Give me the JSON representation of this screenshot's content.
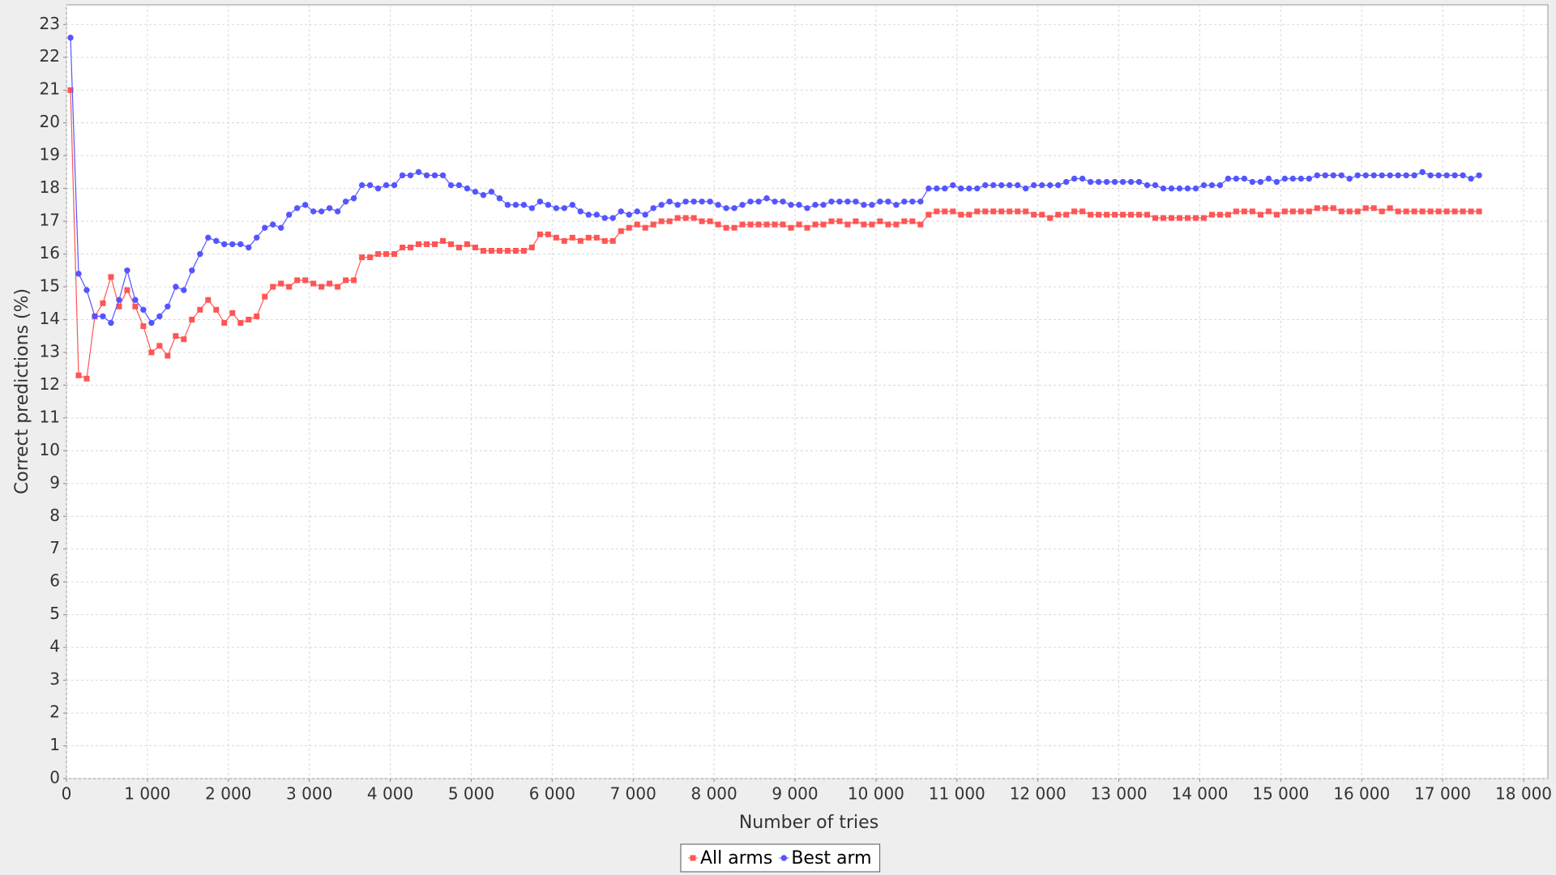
{
  "chart_data": {
    "type": "line",
    "xlabel": "Number of tries",
    "ylabel": "Correct predictions (%)",
    "xlim": [
      0,
      18300
    ],
    "ylim": [
      0,
      23.6
    ],
    "xticks": [
      0,
      {
        "value": 1000,
        "label": "1 000"
      },
      {
        "value": 2000,
        "label": "2 000"
      },
      {
        "value": 3000,
        "label": "3 000"
      },
      {
        "value": 4000,
        "label": "4 000"
      },
      {
        "value": 5000,
        "label": "5 000"
      },
      {
        "value": 6000,
        "label": "6 000"
      },
      {
        "value": 7000,
        "label": "7 000"
      },
      {
        "value": 8000,
        "label": "8 000"
      },
      {
        "value": 9000,
        "label": "9 000"
      },
      {
        "value": 10000,
        "label": "10 000"
      },
      {
        "value": 11000,
        "label": "11 000"
      },
      {
        "value": 12000,
        "label": "12 000"
      },
      {
        "value": 13000,
        "label": "13 000"
      },
      {
        "value": 14000,
        "label": "14 000"
      },
      {
        "value": 15000,
        "label": "15 000"
      },
      {
        "value": 16000,
        "label": "16 000"
      },
      {
        "value": 17000,
        "label": "17 000"
      },
      {
        "value": 18000,
        "label": "18 000"
      }
    ],
    "yticks": [
      0,
      1,
      2,
      3,
      4,
      5,
      6,
      7,
      8,
      9,
      10,
      11,
      12,
      13,
      14,
      15,
      16,
      17,
      18,
      19,
      20,
      21,
      22,
      23
    ],
    "grid": true,
    "x": [
      50,
      150,
      250,
      350,
      450,
      550,
      650,
      750,
      850,
      950,
      1050,
      1150,
      1250,
      1350,
      1450,
      1550,
      1650,
      1750,
      1850,
      1950,
      2050,
      2150,
      2250,
      2350,
      2450,
      2550,
      2650,
      2750,
      2850,
      2950,
      3050,
      3150,
      3250,
      3350,
      3450,
      3550,
      3650,
      3750,
      3850,
      3950,
      4050,
      4150,
      4250,
      4350,
      4450,
      4550,
      4650,
      4750,
      4850,
      4950,
      5050,
      5150,
      5250,
      5350,
      5450,
      5550,
      5650,
      5750,
      5850,
      5950,
      6050,
      6150,
      6250,
      6350,
      6450,
      6550,
      6650,
      6750,
      6850,
      6950,
      7050,
      7150,
      7250,
      7350,
      7450,
      7550,
      7650,
      7750,
      7850,
      7950,
      8050,
      8150,
      8250,
      8350,
      8450,
      8550,
      8650,
      8750,
      8850,
      8950,
      9050,
      9150,
      9250,
      9350,
      9450,
      9550,
      9650,
      9750,
      9850,
      9950,
      10050,
      10150,
      10250,
      10350,
      10450,
      10550,
      10650,
      10750,
      10850,
      10950,
      11050,
      11150,
      11250,
      11350,
      11450,
      11550,
      11650,
      11750,
      11850,
      11950,
      12050,
      12150,
      12250,
      12350,
      12450,
      12550,
      12650,
      12750,
      12850,
      12950,
      13050,
      13150,
      13250,
      13350,
      13450,
      13550,
      13650,
      13750,
      13850,
      13950,
      14050,
      14150,
      14250,
      14350,
      14450,
      14550,
      14650,
      14750,
      14850,
      14950,
      15050,
      15150,
      15250,
      15350,
      15450,
      15550,
      15650,
      15750,
      15850,
      15950,
      16050,
      16150,
      16250,
      16350,
      16450,
      16550,
      16650,
      16750,
      16850,
      16950,
      17050,
      17150,
      17250,
      17350,
      17450
    ],
    "series": [
      {
        "name": "All arms",
        "color": "#ff5555",
        "marker": "square",
        "values": [
          21.0,
          12.3,
          12.2,
          14.1,
          14.5,
          15.3,
          14.4,
          14.9,
          14.4,
          13.8,
          13.0,
          13.2,
          12.9,
          13.5,
          13.4,
          14.0,
          14.3,
          14.6,
          14.3,
          13.9,
          14.2,
          13.9,
          14.0,
          14.1,
          14.7,
          15.0,
          15.1,
          15.0,
          15.2,
          15.2,
          15.1,
          15.0,
          15.1,
          15.0,
          15.2,
          15.2,
          15.9,
          15.9,
          16.0,
          16.0,
          16.0,
          16.2,
          16.2,
          16.3,
          16.3,
          16.3,
          16.4,
          16.3,
          16.2,
          16.3,
          16.2,
          16.1,
          16.1,
          16.1,
          16.1,
          16.1,
          16.1,
          16.2,
          16.6,
          16.6,
          16.5,
          16.4,
          16.5,
          16.4,
          16.5,
          16.5,
          16.4,
          16.4,
          16.7,
          16.8,
          16.9,
          16.8,
          16.9,
          17.0,
          17.0,
          17.1,
          17.1,
          17.1,
          17.0,
          17.0,
          16.9,
          16.8,
          16.8,
          16.9,
          16.9,
          16.9,
          16.9,
          16.9,
          16.9,
          16.8,
          16.9,
          16.8,
          16.9,
          16.9,
          17.0,
          17.0,
          16.9,
          17.0,
          16.9,
          16.9,
          17.0,
          16.9,
          16.9,
          17.0,
          17.0,
          16.9,
          17.2,
          17.3,
          17.3,
          17.3,
          17.2,
          17.2,
          17.3,
          17.3,
          17.3,
          17.3,
          17.3,
          17.3,
          17.3,
          17.2,
          17.2,
          17.1,
          17.2,
          17.2,
          17.3,
          17.3,
          17.2,
          17.2,
          17.2,
          17.2,
          17.2,
          17.2,
          17.2,
          17.2,
          17.1,
          17.1,
          17.1,
          17.1,
          17.1,
          17.1,
          17.1,
          17.2,
          17.2,
          17.2,
          17.3,
          17.3,
          17.3,
          17.2,
          17.3,
          17.2,
          17.3,
          17.3,
          17.3,
          17.3,
          17.4,
          17.4,
          17.4,
          17.3,
          17.3,
          17.3,
          17.4,
          17.4,
          17.3,
          17.4,
          17.3,
          17.3,
          17.3,
          17.3,
          17.3,
          17.3,
          17.3,
          17.3,
          17.3,
          17.3,
          17.3
        ]
      },
      {
        "name": "Best arm",
        "color": "#5555ff",
        "marker": "circle",
        "values": [
          22.6,
          15.4,
          14.9,
          14.1,
          14.1,
          13.9,
          14.6,
          15.5,
          14.6,
          14.3,
          13.9,
          14.1,
          14.4,
          15.0,
          14.9,
          15.5,
          16.0,
          16.5,
          16.4,
          16.3,
          16.3,
          16.3,
          16.2,
          16.5,
          16.8,
          16.9,
          16.8,
          17.2,
          17.4,
          17.5,
          17.3,
          17.3,
          17.4,
          17.3,
          17.6,
          17.7,
          18.1,
          18.1,
          18.0,
          18.1,
          18.1,
          18.4,
          18.4,
          18.5,
          18.4,
          18.4,
          18.4,
          18.1,
          18.1,
          18.0,
          17.9,
          17.8,
          17.9,
          17.7,
          17.5,
          17.5,
          17.5,
          17.4,
          17.6,
          17.5,
          17.4,
          17.4,
          17.5,
          17.3,
          17.2,
          17.2,
          17.1,
          17.1,
          17.3,
          17.2,
          17.3,
          17.2,
          17.4,
          17.5,
          17.6,
          17.5,
          17.6,
          17.6,
          17.6,
          17.6,
          17.5,
          17.4,
          17.4,
          17.5,
          17.6,
          17.6,
          17.7,
          17.6,
          17.6,
          17.5,
          17.5,
          17.4,
          17.5,
          17.5,
          17.6,
          17.6,
          17.6,
          17.6,
          17.5,
          17.5,
          17.6,
          17.6,
          17.5,
          17.6,
          17.6,
          17.6,
          18.0,
          18.0,
          18.0,
          18.1,
          18.0,
          18.0,
          18.0,
          18.1,
          18.1,
          18.1,
          18.1,
          18.1,
          18.0,
          18.1,
          18.1,
          18.1,
          18.1,
          18.2,
          18.3,
          18.3,
          18.2,
          18.2,
          18.2,
          18.2,
          18.2,
          18.2,
          18.2,
          18.1,
          18.1,
          18.0,
          18.0,
          18.0,
          18.0,
          18.0,
          18.1,
          18.1,
          18.1,
          18.3,
          18.3,
          18.3,
          18.2,
          18.2,
          18.3,
          18.2,
          18.3,
          18.3,
          18.3,
          18.3,
          18.4,
          18.4,
          18.4,
          18.4,
          18.3,
          18.4,
          18.4,
          18.4,
          18.4,
          18.4,
          18.4,
          18.4,
          18.4,
          18.5,
          18.4,
          18.4,
          18.4,
          18.4,
          18.4,
          18.3,
          18.4
        ]
      }
    ]
  }
}
